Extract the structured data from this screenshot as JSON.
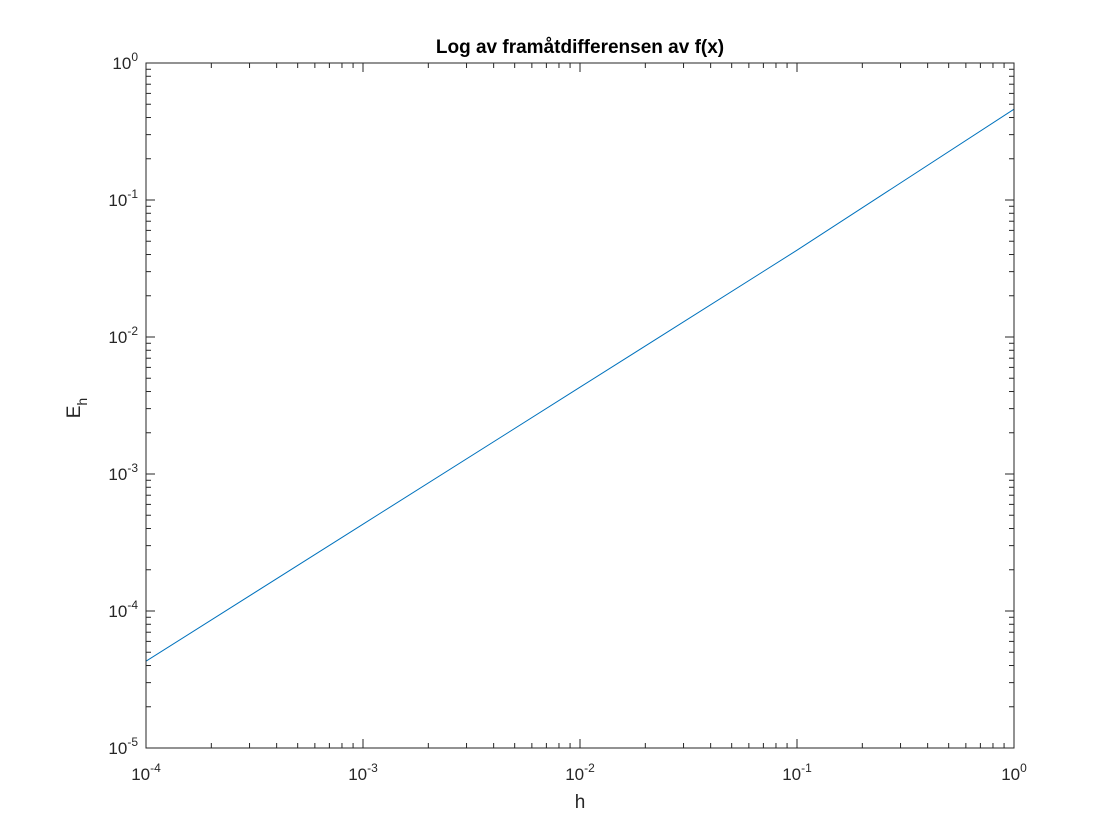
{
  "chart_data": {
    "type": "line",
    "title": "Log av framåtdifferensen av f(x)",
    "xlabel": "h",
    "ylabel": {
      "base": "E",
      "subscript": "h"
    },
    "xscale": "log",
    "yscale": "log",
    "xlim": [
      0.0001,
      1
    ],
    "ylim": [
      1e-05,
      1
    ],
    "xticks": [
      {
        "base": "10",
        "exp": "-4",
        "value": 0.0001
      },
      {
        "base": "10",
        "exp": "-3",
        "value": 0.001
      },
      {
        "base": "10",
        "exp": "-2",
        "value": 0.01
      },
      {
        "base": "10",
        "exp": "-1",
        "value": 0.1
      },
      {
        "base": "10",
        "exp": "0",
        "value": 1
      }
    ],
    "yticks": [
      {
        "base": "10",
        "exp": "-5",
        "value": 1e-05
      },
      {
        "base": "10",
        "exp": "-4",
        "value": 0.0001
      },
      {
        "base": "10",
        "exp": "-3",
        "value": 0.001
      },
      {
        "base": "10",
        "exp": "-2",
        "value": 0.01
      },
      {
        "base": "10",
        "exp": "-1",
        "value": 0.1
      },
      {
        "base": "10",
        "exp": "0",
        "value": 1
      }
    ],
    "grid": false,
    "series": [
      {
        "color": "#0072BD",
        "x": [
          0.0001,
          0.001,
          0.01,
          0.1,
          1
        ],
        "y": [
          4.3e-05,
          0.00043,
          0.0043,
          0.043,
          0.46
        ]
      }
    ]
  }
}
